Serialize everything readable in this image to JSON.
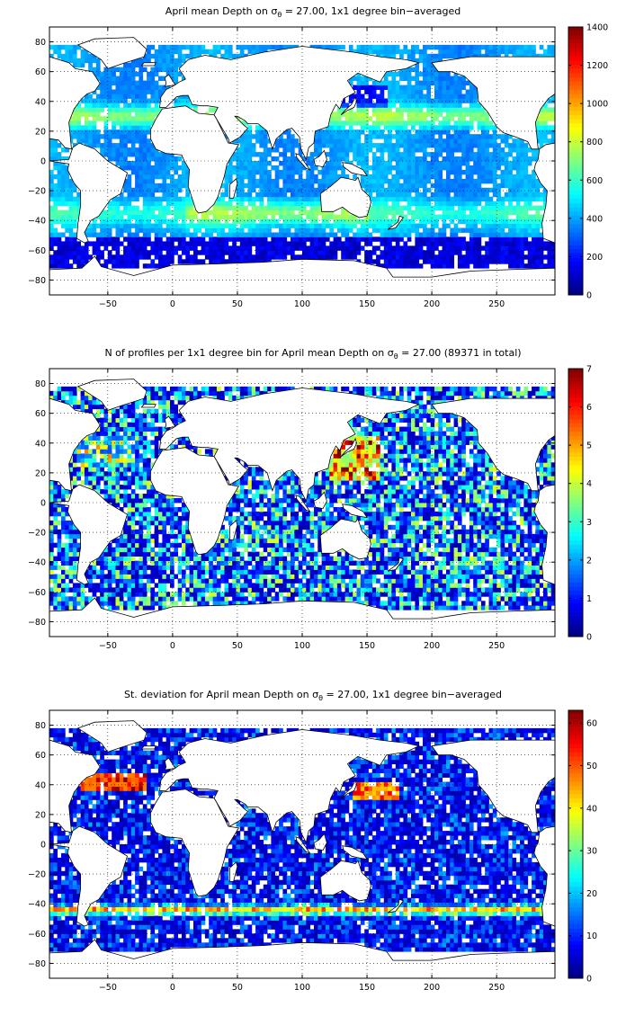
{
  "chart_data": [
    {
      "type": "heatmap",
      "title_parts": [
        "April mean Depth on ",
        "σ",
        "θ",
        " = 27.00, 1x1 degree bin−averaged"
      ],
      "xlim": [
        -95,
        295
      ],
      "ylim": [
        -90,
        90
      ],
      "xticks": [
        -50,
        0,
        50,
        100,
        150,
        200,
        250
      ],
      "yticks": [
        -80,
        -60,
        -40,
        -20,
        0,
        20,
        40,
        60,
        80
      ],
      "grid": true,
      "colorbar": {
        "min": 0,
        "max": 1400,
        "ticks": [
          0,
          200,
          400,
          600,
          800,
          1000,
          1200,
          1400
        ]
      },
      "field": "depth"
    },
    {
      "type": "heatmap",
      "title_parts": [
        "N of profiles per 1x1 degree bin for April mean Depth on ",
        "σ",
        "θ",
        " = 27.00 (89371 in total)"
      ],
      "xlim": [
        -95,
        295
      ],
      "ylim": [
        -90,
        90
      ],
      "xticks": [
        -50,
        0,
        50,
        100,
        150,
        200,
        250
      ],
      "yticks": [
        -80,
        -60,
        -40,
        -20,
        0,
        20,
        40,
        60,
        80
      ],
      "grid": true,
      "colorbar": {
        "min": 0,
        "max": 7,
        "ticks": [
          0,
          1,
          2,
          3,
          4,
          5,
          6,
          7
        ]
      },
      "field": "count"
    },
    {
      "type": "heatmap",
      "title_parts": [
        "St. deviation for April mean Depth on ",
        "σ",
        "θ",
        " = 27.00, 1x1 degree bin−averaged"
      ],
      "xlim": [
        -95,
        295
      ],
      "ylim": [
        -90,
        90
      ],
      "xticks": [
        -50,
        0,
        50,
        100,
        150,
        200,
        250
      ],
      "yticks": [
        -80,
        -60,
        -40,
        -20,
        0,
        20,
        40,
        60,
        80
      ],
      "grid": true,
      "colorbar": {
        "min": 0,
        "max": 63,
        "ticks": [
          0,
          10,
          20,
          30,
          40,
          50,
          60
        ]
      },
      "field": "std"
    }
  ],
  "colors": {
    "colormap": "jet",
    "land": "#ffffff",
    "coastline": "#000000"
  }
}
